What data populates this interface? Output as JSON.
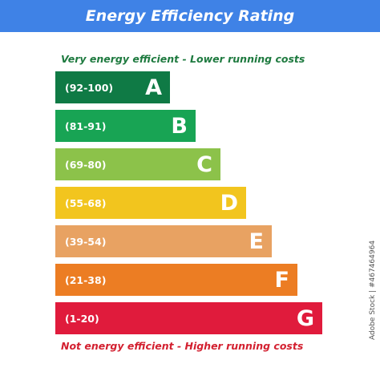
{
  "header": {
    "title": "Energy Efficiency Rating"
  },
  "captions": {
    "top": "Very energy efficient - Lower running costs",
    "bottom": "Not energy efficient - Higher running costs"
  },
  "chart_data": {
    "type": "bar",
    "title": "Energy Efficiency Rating",
    "orientation": "horizontal",
    "categories": [
      "A",
      "B",
      "C",
      "D",
      "E",
      "F",
      "G"
    ],
    "ranges": [
      "(92-100)",
      "(81-91)",
      "(69-80)",
      "(55-68)",
      "(39-54)",
      "(21-38)",
      "(1-20)"
    ],
    "colors": [
      "#0f7a45",
      "#18a454",
      "#8cc24a",
      "#f2c51e",
      "#e8a262",
      "#ec7d23",
      "#e01b3c"
    ],
    "relative_length": [
      1,
      2,
      3,
      4,
      5,
      6,
      7
    ],
    "legend": "none",
    "grid": false
  },
  "watermark": {
    "text": "Adobe Stock | #467464964"
  }
}
